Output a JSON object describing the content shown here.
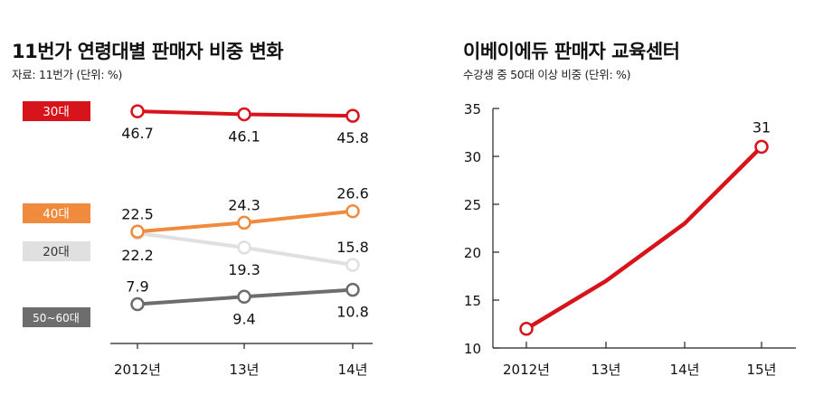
{
  "left_panel": {
    "title": "11번가 연령대별 판매자 비중 변화",
    "subtitle": "자료: 11번가 (단위: %)"
  },
  "right_panel": {
    "title": "이베이에듀 판매자 교육센터",
    "subtitle": "수강생 중 50대 이상 비중 (단위: %)"
  },
  "chart_data": [
    {
      "type": "line",
      "title": "11번가 연령대별 판매자 비중 변화",
      "subtitle": "자료: 11번가 (단위: %)",
      "categories": [
        "2012년",
        "13년",
        "14년"
      ],
      "series": [
        {
          "name": "30대",
          "values": [
            46.7,
            46.1,
            45.8
          ],
          "labels": [
            "46.7",
            "46.1",
            "45.8"
          ],
          "color": "#d7141b"
        },
        {
          "name": "40대",
          "values": [
            22.5,
            24.3,
            26.6
          ],
          "labels": [
            "22.5",
            "24.3",
            "26.6"
          ],
          "color": "#f08a3c"
        },
        {
          "name": "20대",
          "values": [
            22.2,
            19.3,
            15.8
          ],
          "labels": [
            "22.2",
            "19.3",
            "15.8"
          ],
          "color": "#e0e0e0"
        },
        {
          "name": "50~60대",
          "values": [
            7.9,
            9.4,
            10.8
          ],
          "labels": [
            "7.9",
            "9.4",
            "10.8"
          ],
          "color": "#6d6d6d"
        }
      ],
      "legend_placement": "left",
      "grid": false
    },
    {
      "type": "line",
      "title": "이베이에듀 판매자 교육센터",
      "subtitle": "수강생 중 50대 이상 비중 (단위: %)",
      "categories": [
        "2012년",
        "13년",
        "14년",
        "15년"
      ],
      "series": [
        {
          "values": [
            12,
            17,
            23,
            31
          ],
          "color": "#d7141b"
        }
      ],
      "annotations": [
        {
          "category": "15년",
          "text": "31"
        }
      ],
      "ylim": [
        10,
        35
      ],
      "yticks": [
        "10",
        "15",
        "20",
        "25",
        "30",
        "35"
      ],
      "grid": false
    }
  ]
}
